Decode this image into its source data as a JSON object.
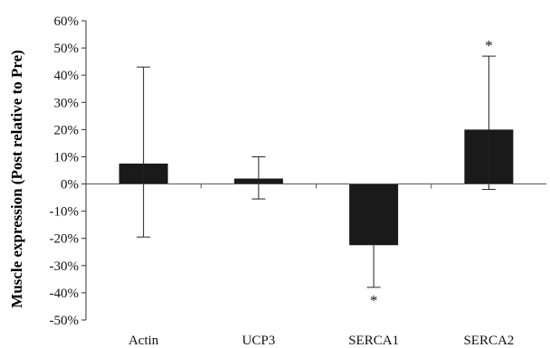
{
  "chart_data": {
    "type": "bar",
    "categories": [
      "Actin",
      "UCP3",
      "SERCA1",
      "SERCA2"
    ],
    "values": [
      7.5,
      2,
      -22.5,
      20
    ],
    "error_plus": [
      43,
      10,
      null,
      47
    ],
    "error_minus": [
      -19.5,
      -5.5,
      -38,
      -2
    ],
    "annotations": [
      "",
      "",
      "*",
      "*"
    ],
    "ylabel": "Muscle expression (Post relative to Pre)",
    "xlabel": "",
    "ylim": [
      -50,
      60
    ],
    "yticks": [
      60,
      50,
      40,
      30,
      20,
      10,
      0,
      -10,
      -20,
      -30,
      -40,
      -50
    ],
    "ytick_labels": [
      "60%",
      "50%",
      "40%",
      "30%",
      "20%",
      "10%",
      "0%",
      "-10%",
      "-20%",
      "-30%",
      "-40%",
      "-50%"
    ],
    "grid": false,
    "bar_color": "#1a1a1a"
  }
}
